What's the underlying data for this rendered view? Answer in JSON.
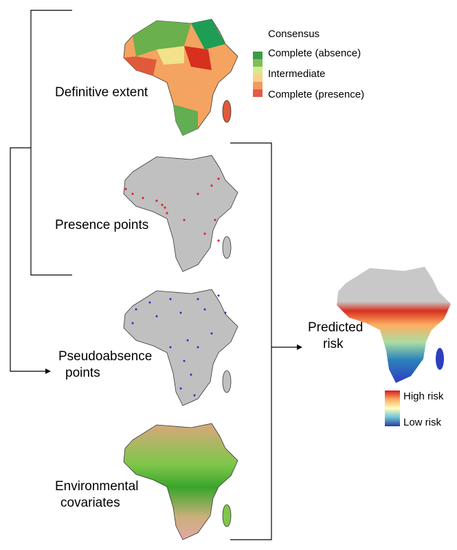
{
  "panels": [
    {
      "label": [
        "Definitive extent"
      ]
    },
    {
      "label": [
        "Presence points"
      ]
    },
    {
      "label": [
        "Pseudoabsence",
        "points"
      ]
    },
    {
      "label": [
        "Environmental",
        "covariates"
      ]
    }
  ],
  "output": {
    "label": [
      "Predicted",
      "risk"
    ]
  },
  "consensus_legend": {
    "title": "Consensus",
    "entries": [
      "Complete (absence)",
      "Intermediate",
      "Complete (presence)"
    ]
  },
  "risk_legend": {
    "high": "High risk",
    "low": "Low risk"
  }
}
